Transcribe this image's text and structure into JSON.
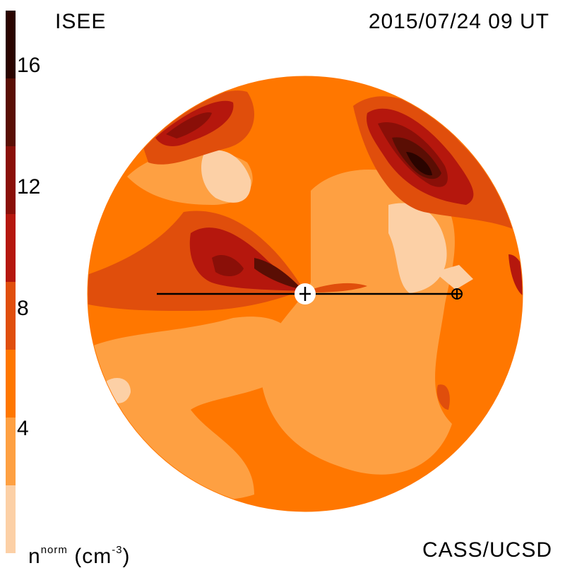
{
  "header": {
    "title": "ISEE",
    "timestamp": "2015/07/24 09 UT"
  },
  "footer": {
    "unit_base": "n",
    "unit_sup": "norm",
    "unit_open": "(cm",
    "unit_exp": "-3",
    "unit_close": ")",
    "credit": "CASS/UCSD"
  },
  "colorbar": {
    "ticks": [
      "16",
      "12",
      "8",
      "4"
    ],
    "bands": [
      "#2a0400",
      "#5a0e04",
      "#8a0f08",
      "#b5170d",
      "#e04e0c",
      "#ff7700",
      "#fea042",
      "#fcd0a6"
    ]
  },
  "map": {
    "center_marker": "sun-marker",
    "earth_marker": "earth-marker"
  }
}
